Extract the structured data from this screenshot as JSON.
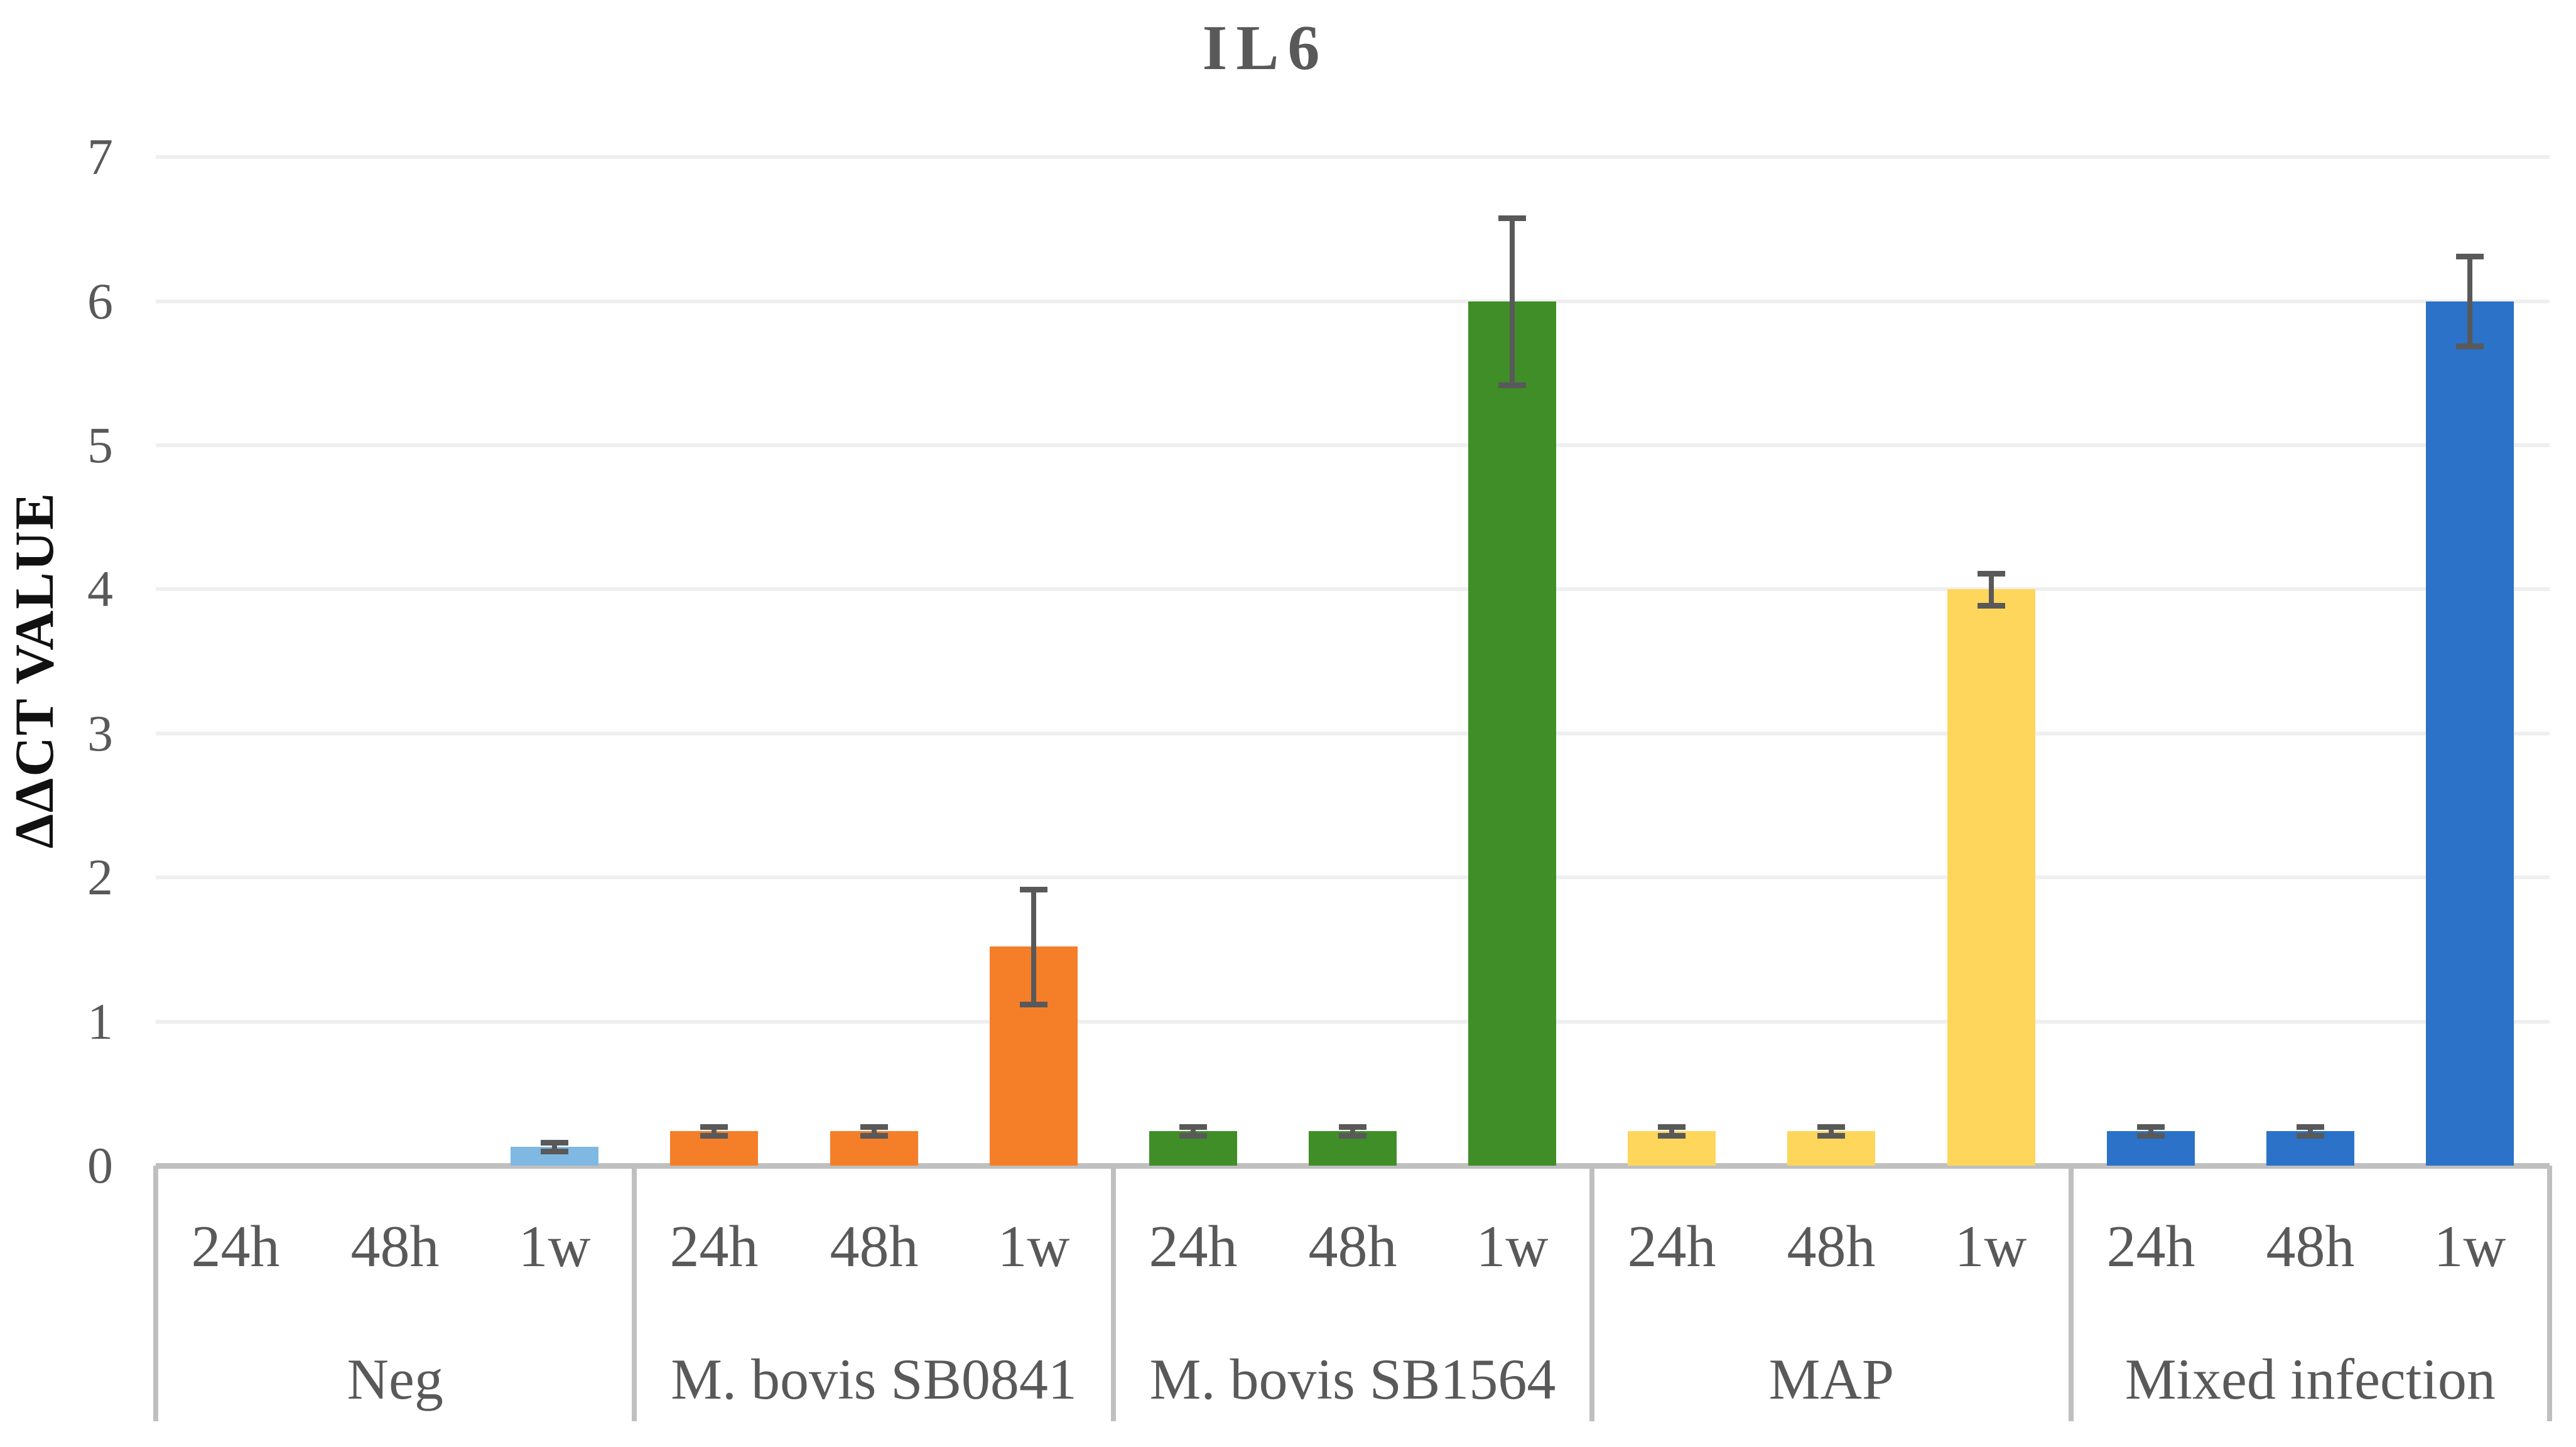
{
  "title": "IL6",
  "y_axis": {
    "label": "ΔΔCT VALUE",
    "tick_labels": [
      "0",
      "1",
      "2",
      "3",
      "4",
      "5",
      "6",
      "7"
    ],
    "min": 0,
    "max": 7
  },
  "x_axis": {
    "time_labels": [
      "24h",
      "48h",
      "1w"
    ],
    "group_labels": [
      "Neg",
      "M. bovis SB0841",
      "M. bovis SB1564",
      "MAP",
      "Mixed infection"
    ]
  },
  "colors": {
    "neg": "#7FB8E2",
    "m_bovis_sb0841": "#F57E28",
    "m_bovis_sb1564": "#3F8E28",
    "map": "#FFD65C",
    "mixed_infection": "#2B72C8",
    "error_bar": "#595959",
    "axis_line": "#bfbfbf",
    "gridline": "#efefef",
    "text": "#595959"
  },
  "chart_data": {
    "type": "bar",
    "title": "IL6",
    "xlabel": "",
    "ylabel": "ΔΔCT VALUE",
    "ylim": [
      0,
      7
    ],
    "grid": true,
    "legend": false,
    "error_bars": true,
    "categories": [
      "24h",
      "48h",
      "1w"
    ],
    "series": [
      {
        "name": "Neg",
        "color": "#7FB8E2",
        "values": [
          0,
          0,
          0.13
        ],
        "errors": [
          0,
          0,
          0.03
        ]
      },
      {
        "name": "M. bovis SB0841",
        "color": "#F57E28",
        "values": [
          0.24,
          0.24,
          1.52
        ],
        "errors": [
          0.03,
          0.03,
          0.4
        ]
      },
      {
        "name": "M. bovis SB1564",
        "color": "#3F8E28",
        "values": [
          0.24,
          0.24,
          6.0
        ],
        "errors": [
          0.03,
          0.03,
          0.58
        ]
      },
      {
        "name": "MAP",
        "color": "#FFD65C",
        "values": [
          0.24,
          0.24,
          4.0
        ],
        "errors": [
          0.03,
          0.03,
          0.11
        ]
      },
      {
        "name": "Mixed infection",
        "color": "#2B72C8",
        "values": [
          0.24,
          0.24,
          6.0
        ],
        "errors": [
          0.03,
          0.03,
          0.31
        ]
      }
    ]
  }
}
